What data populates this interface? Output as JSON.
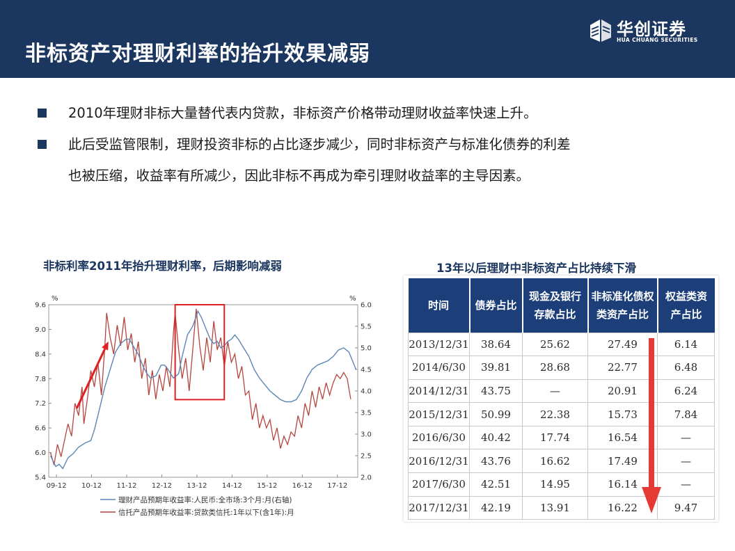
{
  "header": {
    "title": "非标资产对理财利率的抬升效果减弱",
    "logo_cn": "华创证券",
    "logo_en": "HUA CHUANG SECURITIES"
  },
  "bullets": [
    {
      "text": "2010年理财非标大量替代表内贷款，非标资产价格带动理财收益率快速上升。"
    },
    {
      "text": "此后受监管限制，理财投资非标的占比逐步减少，同时非标资产与标准化债券的利差",
      "text2": "也被压缩，收益率有所减少，因此非标不再成为牵引理财收益率的主导因素。"
    }
  ],
  "chart_title": "非标利率2011年抬升理财利率，后期影响减弱",
  "table_title": "13年以后理财中非标资产占比持续下滑",
  "chart_data": {
    "type": "line",
    "left_axis_label": "%",
    "right_axis_label": "%",
    "left_ylim": [
      5.4,
      9.6
    ],
    "right_ylim": [
      2.0,
      6.0
    ],
    "left_ticks": [
      "9.6",
      "9.0",
      "8.4",
      "7.8",
      "7.2",
      "6.6",
      "6.0",
      "5.4"
    ],
    "right_ticks": [
      "6.0",
      "5.5",
      "5.0",
      "4.5",
      "4.0",
      "3.5",
      "3.0",
      "2.5",
      "2.0"
    ],
    "xlim": [
      2009.7,
      2018.5
    ],
    "x_ticks": [
      "09-12",
      "10-12",
      "11-12",
      "12-12",
      "13-12",
      "14-12",
      "15-12",
      "16-12",
      "17-12"
    ],
    "colors": {
      "trust": "#b5443e",
      "wealth": "#5b86b5",
      "annotation": "#e02020"
    },
    "series": [
      {
        "name": "理财产品预期年收益率:人民币:全市场:3个月:月(右轴)",
        "axis": "right",
        "points": [
          [
            2009.75,
            2.5
          ],
          [
            2009.9,
            2.25
          ],
          [
            2010.0,
            2.3
          ],
          [
            2010.1,
            2.2
          ],
          [
            2010.25,
            2.45
          ],
          [
            2010.4,
            2.55
          ],
          [
            2010.55,
            2.7
          ],
          [
            2010.75,
            2.8
          ],
          [
            2010.9,
            2.85
          ],
          [
            2011.0,
            3.1
          ],
          [
            2011.15,
            3.6
          ],
          [
            2011.3,
            4.1
          ],
          [
            2011.45,
            4.5
          ],
          [
            2011.6,
            4.9
          ],
          [
            2011.75,
            5.1
          ],
          [
            2011.9,
            5.2
          ],
          [
            2012.0,
            5.2
          ],
          [
            2012.1,
            5.05
          ],
          [
            2012.25,
            4.85
          ],
          [
            2012.4,
            4.55
          ],
          [
            2012.5,
            4.4
          ],
          [
            2012.6,
            4.3
          ],
          [
            2012.75,
            4.35
          ],
          [
            2012.9,
            4.6
          ],
          [
            2013.0,
            4.6
          ],
          [
            2013.1,
            4.5
          ],
          [
            2013.25,
            4.3
          ],
          [
            2013.4,
            4.4
          ],
          [
            2013.5,
            4.8
          ],
          [
            2013.65,
            5.3
          ],
          [
            2013.8,
            5.5
          ],
          [
            2013.95,
            5.85
          ],
          [
            2014.05,
            5.7
          ],
          [
            2014.2,
            5.4
          ],
          [
            2014.3,
            5.2
          ],
          [
            2014.4,
            5.1
          ],
          [
            2014.5,
            5.15
          ],
          [
            2014.6,
            5.0
          ],
          [
            2014.7,
            5.05
          ],
          [
            2014.8,
            5.15
          ],
          [
            2014.9,
            5.2
          ],
          [
            2015.0,
            5.3
          ],
          [
            2015.1,
            5.2
          ],
          [
            2015.25,
            5.0
          ],
          [
            2015.4,
            4.8
          ],
          [
            2015.55,
            4.5
          ],
          [
            2015.7,
            4.3
          ],
          [
            2015.85,
            4.15
          ],
          [
            2016.0,
            4.0
          ],
          [
            2016.15,
            3.9
          ],
          [
            2016.3,
            3.8
          ],
          [
            2016.45,
            3.75
          ],
          [
            2016.6,
            3.75
          ],
          [
            2016.75,
            3.8
          ],
          [
            2016.9,
            4.0
          ],
          [
            2017.05,
            4.3
          ],
          [
            2017.2,
            4.5
          ],
          [
            2017.35,
            4.6
          ],
          [
            2017.5,
            4.65
          ],
          [
            2017.65,
            4.7
          ],
          [
            2017.8,
            4.8
          ],
          [
            2017.95,
            4.95
          ],
          [
            2018.1,
            5.0
          ],
          [
            2018.25,
            4.9
          ],
          [
            2018.35,
            4.7
          ],
          [
            2018.45,
            4.5
          ]
        ]
      },
      {
        "name": "信托产品预期年收益率:贷款类信托:1年以下(含1年):月",
        "axis": "left",
        "points": [
          [
            2009.75,
            6.0
          ],
          [
            2009.85,
            5.7
          ],
          [
            2009.95,
            6.2
          ],
          [
            2010.05,
            5.9
          ],
          [
            2010.15,
            6.3
          ],
          [
            2010.25,
            6.7
          ],
          [
            2010.35,
            6.4
          ],
          [
            2010.45,
            7.2
          ],
          [
            2010.55,
            6.9
          ],
          [
            2010.65,
            7.6
          ],
          [
            2010.7,
            6.7
          ],
          [
            2010.8,
            7.3
          ],
          [
            2010.9,
            8.0
          ],
          [
            2011.0,
            7.6
          ],
          [
            2011.1,
            8.2
          ],
          [
            2011.2,
            7.4
          ],
          [
            2011.3,
            8.6
          ],
          [
            2011.35,
            9.4
          ],
          [
            2011.45,
            8.8
          ],
          [
            2011.55,
            8.4
          ],
          [
            2011.65,
            9.1
          ],
          [
            2011.75,
            8.6
          ],
          [
            2011.85,
            9.3
          ],
          [
            2011.95,
            8.5
          ],
          [
            2012.05,
            8.9
          ],
          [
            2012.15,
            8.2
          ],
          [
            2012.25,
            8.7
          ],
          [
            2012.35,
            7.8
          ],
          [
            2012.45,
            8.3
          ],
          [
            2012.55,
            7.4
          ],
          [
            2012.65,
            8.0
          ],
          [
            2012.75,
            7.3
          ],
          [
            2012.85,
            7.9
          ],
          [
            2012.95,
            7.5
          ],
          [
            2013.05,
            8.1
          ],
          [
            2013.15,
            7.6
          ],
          [
            2013.25,
            8.9
          ],
          [
            2013.3,
            9.4
          ],
          [
            2013.4,
            8.5
          ],
          [
            2013.5,
            7.8
          ],
          [
            2013.6,
            8.3
          ],
          [
            2013.7,
            7.5
          ],
          [
            2013.8,
            8.5
          ],
          [
            2013.9,
            9.5
          ],
          [
            2014.0,
            8.6
          ],
          [
            2014.1,
            8.0
          ],
          [
            2014.2,
            8.8
          ],
          [
            2014.3,
            8.2
          ],
          [
            2014.4,
            9.2
          ],
          [
            2014.5,
            8.5
          ],
          [
            2014.6,
            8.8
          ],
          [
            2014.7,
            8.1
          ],
          [
            2014.8,
            8.7
          ],
          [
            2014.9,
            8.2
          ],
          [
            2015.0,
            8.4
          ],
          [
            2015.1,
            7.8
          ],
          [
            2015.2,
            8.1
          ],
          [
            2015.3,
            7.4
          ],
          [
            2015.4,
            7.5
          ],
          [
            2015.5,
            6.8
          ],
          [
            2015.6,
            7.2
          ],
          [
            2015.7,
            6.6
          ],
          [
            2015.8,
            6.9
          ],
          [
            2015.9,
            6.6
          ],
          [
            2016.0,
            6.8
          ],
          [
            2016.1,
            6.3
          ],
          [
            2016.2,
            6.6
          ],
          [
            2016.3,
            6.1
          ],
          [
            2016.4,
            6.4
          ],
          [
            2016.5,
            6.2
          ],
          [
            2016.6,
            6.5
          ],
          [
            2016.7,
            6.4
          ],
          [
            2016.8,
            6.9
          ],
          [
            2016.9,
            6.6
          ],
          [
            2017.0,
            7.2
          ],
          [
            2017.1,
            6.9
          ],
          [
            2017.2,
            7.5
          ],
          [
            2017.3,
            7.1
          ],
          [
            2017.4,
            7.6
          ],
          [
            2017.5,
            7.3
          ],
          [
            2017.6,
            7.7
          ],
          [
            2017.7,
            7.4
          ],
          [
            2017.8,
            7.7
          ],
          [
            2017.9,
            7.9
          ],
          [
            2018.0,
            7.8
          ],
          [
            2018.1,
            7.95
          ],
          [
            2018.2,
            7.8
          ],
          [
            2018.3,
            7.3
          ]
        ]
      }
    ],
    "annotations": {
      "arrow": {
        "from": [
          2010.5,
          3.6
        ],
        "to": [
          2011.4,
          5.15
        ],
        "axis": "right"
      },
      "box": {
        "x": [
          2013.3,
          2014.7
        ],
        "y": [
          3.8,
          6.0
        ],
        "axis": "right"
      }
    }
  },
  "table": {
    "headers": [
      [
        "时间"
      ],
      [
        "债券占比"
      ],
      [
        "现金及银行",
        "存款占比"
      ],
      [
        "非标准化债权",
        "类资产占比"
      ],
      [
        "权益类资",
        "产占比"
      ]
    ],
    "rows": [
      [
        "2013/12/31",
        "38.64",
        "25.62",
        "27.49",
        "6.14"
      ],
      [
        "2014/6/30",
        "39.81",
        "28.68",
        "22.77",
        "6.48"
      ],
      [
        "2014/12/31",
        "43.75",
        "—",
        "20.91",
        "6.24"
      ],
      [
        "2015/12/31",
        "50.99",
        "22.38",
        "15.73",
        "7.84"
      ],
      [
        "2016/6/30",
        "40.42",
        "17.74",
        "16.54",
        "—"
      ],
      [
        "2016/12/31",
        "43.76",
        "16.62",
        "17.49",
        "—"
      ],
      [
        "2017/6/30",
        "42.51",
        "14.95",
        "16.14",
        "—"
      ],
      [
        "2017/12/31",
        "42.19",
        "13.91",
        "16.22",
        "9.47"
      ]
    ]
  }
}
